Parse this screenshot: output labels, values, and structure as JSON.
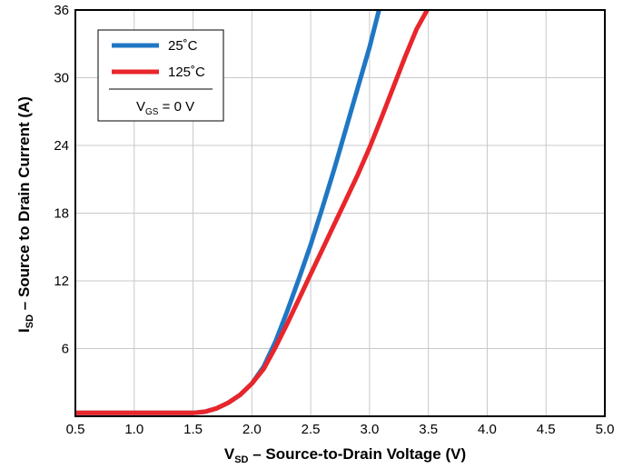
{
  "chart_data": {
    "type": "line",
    "xlabel": {
      "main": "V",
      "sub": "SD",
      "rest": " – Source-to-Drain Voltage (V)"
    },
    "ylabel": {
      "main": "I",
      "sub": "SD",
      "rest": " – Source to Drain Current (A)"
    },
    "xlim": [
      0.5,
      5.0
    ],
    "ylim": [
      0,
      36
    ],
    "x_ticks": [
      "0.5",
      "1.0",
      "1.5",
      "2.0",
      "2.5",
      "3.0",
      "3.5",
      "4.0",
      "4.5",
      "5.0"
    ],
    "x_tick_values": [
      0.5,
      1.0,
      1.5,
      2.0,
      2.5,
      3.0,
      3.5,
      4.0,
      4.5,
      5.0
    ],
    "y_ticks": [
      "6",
      "12",
      "18",
      "24",
      "30",
      "36"
    ],
    "y_tick_values": [
      6,
      12,
      18,
      24,
      30,
      36
    ],
    "grid": true,
    "legend": {
      "placement": "top-left",
      "condition": {
        "main": "V",
        "sub": "GS",
        "rest": " = 0 V"
      }
    },
    "series": [
      {
        "name": "25˚C",
        "color": "#1f77c4",
        "x": [
          0.5,
          1.5,
          1.6,
          1.7,
          1.8,
          1.9,
          2.0,
          2.1,
          2.2,
          2.3,
          2.4,
          2.5,
          2.6,
          2.7,
          2.8,
          2.9,
          3.0,
          3.08
        ],
        "y": [
          0.3,
          0.3,
          0.4,
          0.7,
          1.2,
          1.9,
          2.9,
          4.4,
          6.6,
          9.3,
          12.2,
          15.2,
          18.5,
          21.9,
          25.5,
          29.1,
          32.7,
          36
        ]
      },
      {
        "name": "125˚C",
        "color": "#e8262b",
        "x": [
          0.5,
          1.5,
          1.6,
          1.7,
          1.8,
          1.9,
          2.0,
          2.1,
          2.2,
          2.3,
          2.4,
          2.5,
          2.6,
          2.7,
          2.8,
          2.9,
          3.0,
          3.1,
          3.2,
          3.3,
          3.4,
          3.49
        ],
        "y": [
          0.3,
          0.3,
          0.4,
          0.7,
          1.2,
          1.9,
          2.9,
          4.2,
          6.1,
          8.2,
          10.4,
          12.6,
          14.8,
          17.0,
          19.2,
          21.4,
          23.8,
          26.4,
          29.1,
          31.8,
          34.3,
          36
        ]
      }
    ]
  }
}
